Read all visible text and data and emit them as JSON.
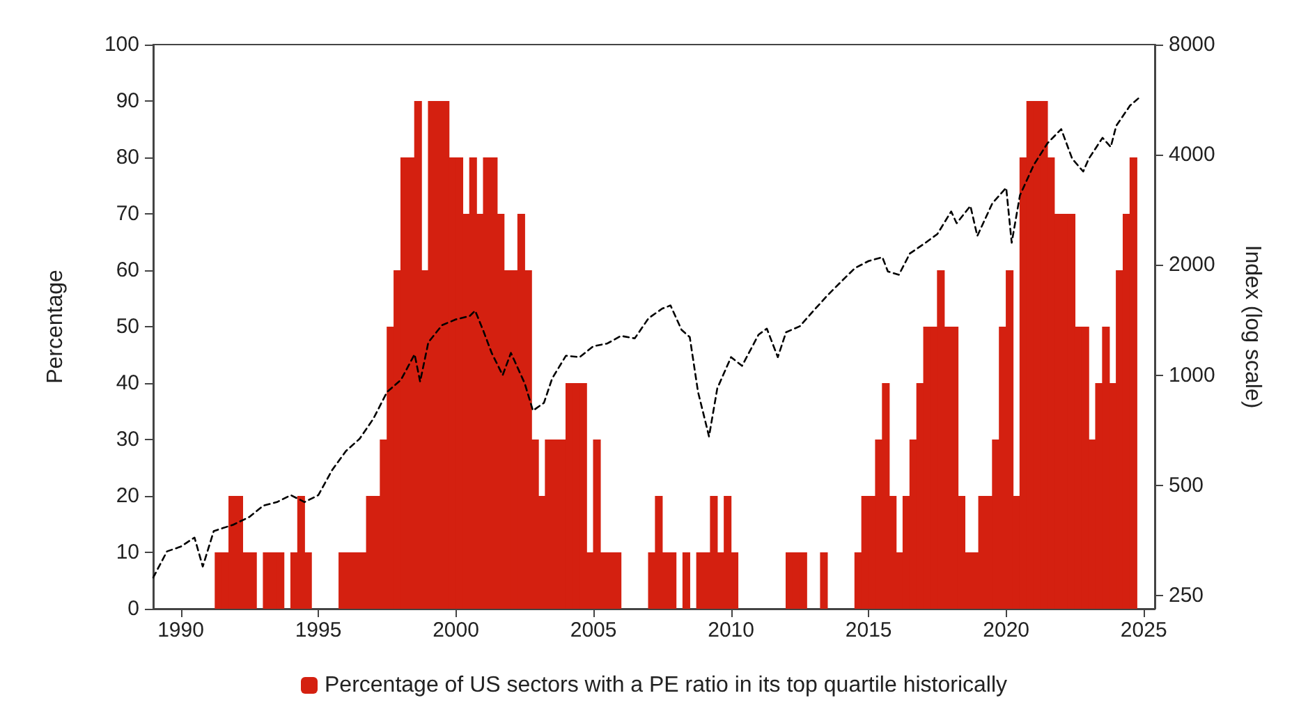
{
  "chart_data": {
    "type": "bar",
    "ylabel": "Percentage",
    "y2label": "Index (log scale)",
    "xlim": [
      1989,
      2025.4
    ],
    "xticks": [
      1990,
      1995,
      2000,
      2005,
      2010,
      2015,
      2020,
      2025
    ],
    "ylim": [
      0,
      100
    ],
    "yticks": [
      0,
      10,
      20,
      30,
      40,
      50,
      60,
      70,
      80,
      90,
      100
    ],
    "y2lim": [
      230,
      8000
    ],
    "y2ticks": [
      250,
      500,
      1000,
      2000,
      4000,
      8000
    ],
    "log": "y2",
    "grid": false,
    "legend": "bottom",
    "series": [
      {
        "name": "Percentage of US sectors with a PE ratio in its top quartile historically",
        "color": "#d42010",
        "x": [
          1989.125,
          1989.375,
          1989.625,
          1989.875,
          1990.125,
          1990.375,
          1990.625,
          1990.875,
          1991.125,
          1991.375,
          1991.625,
          1991.875,
          1992.125,
          1992.375,
          1992.625,
          1992.875,
          1993.125,
          1993.375,
          1993.625,
          1993.875,
          1994.125,
          1994.375,
          1994.625,
          1994.875,
          1995.125,
          1995.375,
          1995.625,
          1995.875,
          1996.125,
          1996.375,
          1996.625,
          1996.875,
          1997.125,
          1997.375,
          1997.625,
          1997.875,
          1998.125,
          1998.375,
          1998.625,
          1998.875,
          1999.125,
          1999.375,
          1999.625,
          1999.875,
          2000.125,
          2000.375,
          2000.625,
          2000.875,
          2001.125,
          2001.375,
          2001.625,
          2001.875,
          2002.125,
          2002.375,
          2002.625,
          2002.875,
          2003.125,
          2003.375,
          2003.625,
          2003.875,
          2004.125,
          2004.375,
          2004.625,
          2004.875,
          2005.125,
          2005.375,
          2005.625,
          2005.875,
          2006.125,
          2006.375,
          2006.625,
          2006.875,
          2007.125,
          2007.375,
          2007.625,
          2007.875,
          2008.125,
          2008.375,
          2008.625,
          2008.875,
          2009.125,
          2009.375,
          2009.625,
          2009.875,
          2010.125,
          2010.375,
          2010.625,
          2010.875,
          2011.125,
          2011.375,
          2011.625,
          2011.875,
          2012.125,
          2012.375,
          2012.625,
          2012.875,
          2013.125,
          2013.375,
          2013.625,
          2013.875,
          2014.125,
          2014.375,
          2014.625,
          2014.875,
          2015.125,
          2015.375,
          2015.625,
          2015.875,
          2016.125,
          2016.375,
          2016.625,
          2016.875,
          2017.125,
          2017.375,
          2017.625,
          2017.875,
          2018.125,
          2018.375,
          2018.625,
          2018.875,
          2019.125,
          2019.375,
          2019.625,
          2019.875,
          2020.125,
          2020.375,
          2020.625,
          2020.875,
          2021.125,
          2021.375,
          2021.625,
          2021.875,
          2022.125,
          2022.375,
          2022.625,
          2022.875,
          2023.125,
          2023.375,
          2023.625,
          2023.875,
          2024.125,
          2024.375,
          2024.625
        ],
        "values": [
          0,
          0,
          0,
          0,
          0,
          0,
          0,
          0,
          0,
          10,
          10,
          20,
          20,
          10,
          10,
          0,
          10,
          10,
          10,
          0,
          10,
          20,
          10,
          0,
          0,
          0,
          0,
          10,
          10,
          10,
          10,
          20,
          20,
          30,
          50,
          60,
          80,
          80,
          90,
          60,
          90,
          90,
          90,
          80,
          80,
          70,
          80,
          70,
          80,
          80,
          70,
          60,
          60,
          70,
          60,
          30,
          20,
          30,
          30,
          30,
          40,
          40,
          40,
          10,
          30,
          10,
          10,
          10,
          0,
          0,
          0,
          0,
          10,
          20,
          10,
          10,
          0,
          10,
          0,
          10,
          10,
          20,
          10,
          20,
          10,
          0,
          0,
          0,
          0,
          0,
          0,
          0,
          10,
          10,
          10,
          0,
          0,
          10,
          0,
          0,
          0,
          0,
          10,
          20,
          20,
          30,
          40,
          20,
          10,
          20,
          30,
          40,
          50,
          50,
          60,
          50,
          50,
          20,
          10,
          10,
          20,
          20,
          30,
          50,
          60,
          20,
          80,
          90,
          90,
          90,
          80,
          70,
          70,
          70,
          50,
          50,
          30,
          40,
          50,
          40,
          60,
          70,
          80
        ]
      },
      {
        "type": "line",
        "axis": "y2",
        "color": "#000000",
        "line_style": "dashed",
        "marker": "none",
        "x": [
          1989.0,
          1989.5,
          1990.0,
          1990.5,
          1990.8,
          1991.2,
          1991.9,
          1992.5,
          1993.0,
          1993.5,
          1994.0,
          1994.5,
          1995.0,
          1995.5,
          1996.0,
          1996.5,
          1997.0,
          1997.5,
          1998.0,
          1998.5,
          1998.7,
          1999.0,
          1999.5,
          2000.0,
          2000.5,
          2000.7,
          2001.0,
          2001.3,
          2001.7,
          2002.0,
          2002.5,
          2002.8,
          2003.2,
          2003.5,
          2004.0,
          2004.5,
          2005.0,
          2005.5,
          2006.0,
          2006.5,
          2007.0,
          2007.5,
          2007.8,
          2008.2,
          2008.5,
          2008.8,
          2009.2,
          2009.5,
          2010.0,
          2010.4,
          2011.0,
          2011.3,
          2011.7,
          2012.0,
          2012.5,
          2013.0,
          2013.5,
          2014.0,
          2014.5,
          2015.0,
          2015.5,
          2015.7,
          2016.1,
          2016.5,
          2017.0,
          2017.5,
          2018.0,
          2018.2,
          2018.7,
          2018.95,
          2019.5,
          2020.0,
          2020.2,
          2020.5,
          2021.0,
          2021.5,
          2022.0,
          2022.4,
          2022.8,
          2023.0,
          2023.5,
          2023.8,
          2024.0,
          2024.5,
          2024.8
        ],
        "values": [
          280,
          330,
          340,
          360,
          300,
          375,
          390,
          410,
          440,
          450,
          470,
          450,
          470,
          550,
          620,
          670,
          760,
          900,
          970,
          1140,
          960,
          1230,
          1370,
          1420,
          1450,
          1500,
          1320,
          1150,
          1000,
          1150,
          950,
          800,
          840,
          980,
          1130,
          1120,
          1200,
          1220,
          1280,
          1260,
          1430,
          1520,
          1550,
          1330,
          1270,
          900,
          680,
          920,
          1120,
          1060,
          1290,
          1340,
          1120,
          1310,
          1360,
          1500,
          1650,
          1800,
          1960,
          2050,
          2100,
          1920,
          1880,
          2150,
          2280,
          2430,
          2800,
          2600,
          2900,
          2400,
          2950,
          3250,
          2300,
          3100,
          3750,
          4300,
          4700,
          3900,
          3600,
          3900,
          4450,
          4200,
          4800,
          5450,
          5700
        ]
      }
    ]
  }
}
